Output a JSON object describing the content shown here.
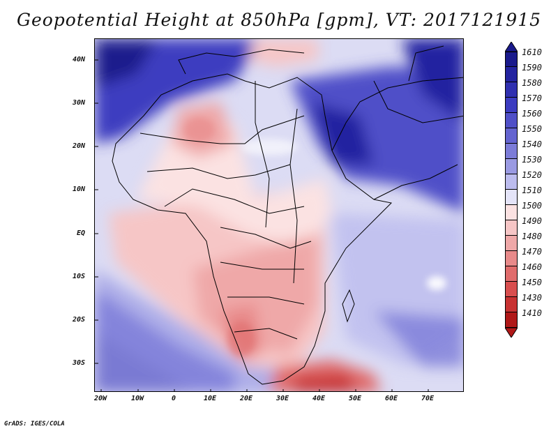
{
  "title": "Geopotential Height at 850hPa [gpm], VT: 2017121915",
  "credit": "GrADS: IGES/COLA",
  "lat_labels": [
    "40N",
    "30N",
    "20N",
    "10N",
    "EQ",
    "10S",
    "20S",
    "30S"
  ],
  "lon_labels": [
    "20W",
    "10W",
    "0",
    "10E",
    "20E",
    "30E",
    "40E",
    "50E",
    "60E",
    "70E"
  ],
  "colorbar": {
    "levels": [
      "1610",
      "1590",
      "1580",
      "1570",
      "1560",
      "1550",
      "1540",
      "1530",
      "1520",
      "1510",
      "1500",
      "1490",
      "1480",
      "1470",
      "1460",
      "1450",
      "1430",
      "1410"
    ],
    "colors": [
      "#1a1a8c",
      "#2424a0",
      "#3030b0",
      "#3c3cc0",
      "#5050c8",
      "#6464d0",
      "#7c7cd8",
      "#9a9ae2",
      "#bcbcee",
      "#e4e4f8",
      "#fbe2e2",
      "#f6c6c6",
      "#efa8a8",
      "#e88a8a",
      "#e06c6c",
      "#d84e4e",
      "#c83232",
      "#b01818"
    ]
  },
  "chart_data": {
    "type": "heatmap",
    "title": "Geopotential Height at 850hPa [gpm], VT: 2017121915",
    "variable": "Geopotential Height",
    "level": "850hPa",
    "units": "gpm",
    "valid_time": "2017121915",
    "lon_range": [
      -22,
      80
    ],
    "lat_range": [
      -37,
      45
    ],
    "contour_levels": [
      1410,
      1430,
      1450,
      1460,
      1470,
      1480,
      1490,
      1500,
      1510,
      1520,
      1530,
      1540,
      1550,
      1560,
      1570,
      1580,
      1590,
      1610
    ]
  }
}
